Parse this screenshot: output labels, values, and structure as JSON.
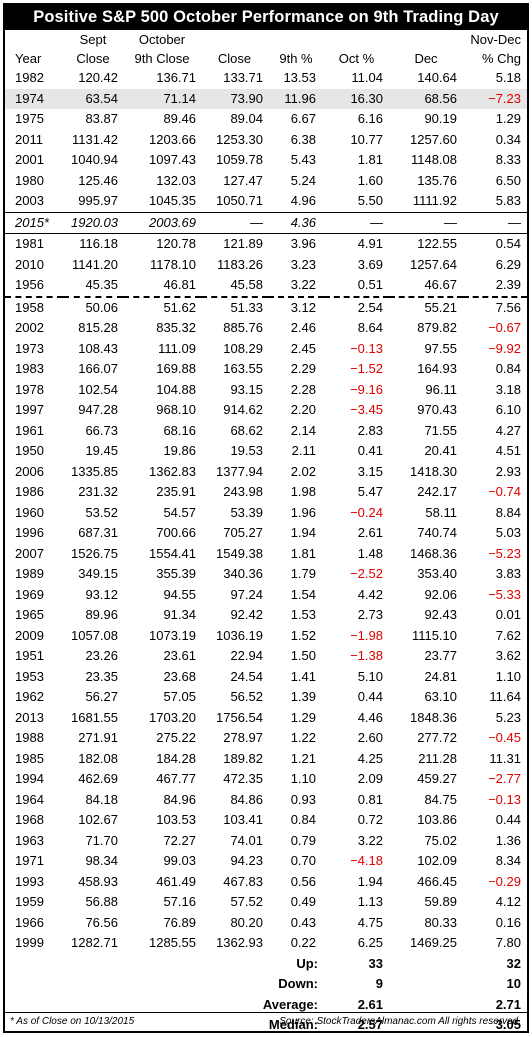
{
  "title": "Positive S&P 500 October Performance on 9th Trading Day",
  "header": {
    "row1": [
      "",
      "Sept",
      "October",
      "",
      "",
      "",
      "",
      "Nov-Dec"
    ],
    "row2": [
      "Year",
      "Close",
      "9th Close",
      "Close",
      "9th %",
      "Oct %",
      "Dec",
      "% Chg"
    ]
  },
  "group1": [
    [
      "1982",
      "120.42",
      "136.71",
      "133.71",
      "13.53",
      "11.04",
      "140.64",
      "5.18"
    ],
    [
      "1974",
      "63.54",
      "71.14",
      "73.90",
      "11.96",
      "16.30",
      "68.56",
      "−7.23"
    ],
    [
      "1975",
      "83.87",
      "89.46",
      "89.04",
      "6.67",
      "6.16",
      "90.19",
      "1.29"
    ],
    [
      "2011",
      "1131.42",
      "1203.66",
      "1253.30",
      "6.38",
      "10.77",
      "1257.60",
      "0.34"
    ],
    [
      "2001",
      "1040.94",
      "1097.43",
      "1059.78",
      "5.43",
      "1.81",
      "1148.08",
      "8.33"
    ],
    [
      "1980",
      "125.46",
      "132.03",
      "127.47",
      "5.24",
      "1.60",
      "135.76",
      "6.50"
    ],
    [
      "2003",
      "995.97",
      "1045.35",
      "1050.71",
      "4.96",
      "5.50",
      "1111.92",
      "5.83"
    ]
  ],
  "current": [
    "2015*",
    "1920.03",
    "2003.69",
    "—",
    "4.36",
    "—",
    "—",
    "—"
  ],
  "group2": [
    [
      "1981",
      "116.18",
      "120.78",
      "121.89",
      "3.96",
      "4.91",
      "122.55",
      "0.54"
    ],
    [
      "2010",
      "1141.20",
      "1178.10",
      "1183.26",
      "3.23",
      "3.69",
      "1257.64",
      "6.29"
    ],
    [
      "1956",
      "45.35",
      "46.81",
      "45.58",
      "3.22",
      "0.51",
      "46.67",
      "2.39"
    ]
  ],
  "group3": [
    [
      "1958",
      "50.06",
      "51.62",
      "51.33",
      "3.12",
      "2.54",
      "55.21",
      "7.56"
    ],
    [
      "2002",
      "815.28",
      "835.32",
      "885.76",
      "2.46",
      "8.64",
      "879.82",
      "−0.67"
    ],
    [
      "1973",
      "108.43",
      "111.09",
      "108.29",
      "2.45",
      "−0.13",
      "97.55",
      "−9.92"
    ],
    [
      "1983",
      "166.07",
      "169.88",
      "163.55",
      "2.29",
      "−1.52",
      "164.93",
      "0.84"
    ],
    [
      "1978",
      "102.54",
      "104.88",
      "93.15",
      "2.28",
      "−9.16",
      "96.11",
      "3.18"
    ],
    [
      "1997",
      "947.28",
      "968.10",
      "914.62",
      "2.20",
      "−3.45",
      "970.43",
      "6.10"
    ],
    [
      "1961",
      "66.73",
      "68.16",
      "68.62",
      "2.14",
      "2.83",
      "71.55",
      "4.27"
    ],
    [
      "1950",
      "19.45",
      "19.86",
      "19.53",
      "2.11",
      "0.41",
      "20.41",
      "4.51"
    ],
    [
      "2006",
      "1335.85",
      "1362.83",
      "1377.94",
      "2.02",
      "3.15",
      "1418.30",
      "2.93"
    ],
    [
      "1986",
      "231.32",
      "235.91",
      "243.98",
      "1.98",
      "5.47",
      "242.17",
      "−0.74"
    ],
    [
      "1960",
      "53.52",
      "54.57",
      "53.39",
      "1.96",
      "−0.24",
      "58.11",
      "8.84"
    ],
    [
      "1996",
      "687.31",
      "700.66",
      "705.27",
      "1.94",
      "2.61",
      "740.74",
      "5.03"
    ],
    [
      "2007",
      "1526.75",
      "1554.41",
      "1549.38",
      "1.81",
      "1.48",
      "1468.36",
      "−5.23"
    ],
    [
      "1989",
      "349.15",
      "355.39",
      "340.36",
      "1.79",
      "−2.52",
      "353.40",
      "3.83"
    ],
    [
      "1969",
      "93.12",
      "94.55",
      "97.24",
      "1.54",
      "4.42",
      "92.06",
      "−5.33"
    ],
    [
      "1965",
      "89.96",
      "91.34",
      "92.42",
      "1.53",
      "2.73",
      "92.43",
      "0.01"
    ],
    [
      "2009",
      "1057.08",
      "1073.19",
      "1036.19",
      "1.52",
      "−1.98",
      "1115.10",
      "7.62"
    ],
    [
      "1951",
      "23.26",
      "23.61",
      "22.94",
      "1.50",
      "−1.38",
      "23.77",
      "3.62"
    ],
    [
      "1953",
      "23.35",
      "23.68",
      "24.54",
      "1.41",
      "5.10",
      "24.81",
      "1.10"
    ],
    [
      "1962",
      "56.27",
      "57.05",
      "56.52",
      "1.39",
      "0.44",
      "63.10",
      "11.64"
    ],
    [
      "2013",
      "1681.55",
      "1703.20",
      "1756.54",
      "1.29",
      "4.46",
      "1848.36",
      "5.23"
    ],
    [
      "1988",
      "271.91",
      "275.22",
      "278.97",
      "1.22",
      "2.60",
      "277.72",
      "−0.45"
    ],
    [
      "1985",
      "182.08",
      "184.28",
      "189.82",
      "1.21",
      "4.25",
      "211.28",
      "11.31"
    ],
    [
      "1994",
      "462.69",
      "467.77",
      "472.35",
      "1.10",
      "2.09",
      "459.27",
      "−2.77"
    ],
    [
      "1964",
      "84.18",
      "84.96",
      "84.86",
      "0.93",
      "0.81",
      "84.75",
      "−0.13"
    ],
    [
      "1968",
      "102.67",
      "103.53",
      "103.41",
      "0.84",
      "0.72",
      "103.86",
      "0.44"
    ],
    [
      "1963",
      "71.70",
      "72.27",
      "74.01",
      "0.79",
      "3.22",
      "75.02",
      "1.36"
    ],
    [
      "1971",
      "98.34",
      "99.03",
      "94.23",
      "0.70",
      "−4.18",
      "102.09",
      "8.34"
    ],
    [
      "1993",
      "458.93",
      "461.49",
      "467.83",
      "0.56",
      "1.94",
      "466.45",
      "−0.29"
    ],
    [
      "1959",
      "56.88",
      "57.16",
      "57.52",
      "0.49",
      "1.13",
      "59.89",
      "4.12"
    ],
    [
      "1966",
      "76.56",
      "76.89",
      "80.20",
      "0.43",
      "4.75",
      "80.33",
      "0.16"
    ],
    [
      "1999",
      "1282.71",
      "1285.55",
      "1362.93",
      "0.22",
      "6.25",
      "1469.25",
      "7.80"
    ]
  ],
  "summary": [
    {
      "label": "Up:",
      "oct": "33",
      "nov_dec": "32"
    },
    {
      "label": "Down:",
      "oct": "9",
      "nov_dec": "10"
    },
    {
      "label": "Average:",
      "oct": "2.61",
      "nov_dec": "2.71"
    },
    {
      "label": "Median:",
      "oct": "2.57",
      "nov_dec": "3.05"
    }
  ],
  "footnote": "* As of Close on 10/13/2015",
  "source": "Source: StockTradersAlmanac.com All rights reserved.",
  "colors": {
    "negative": "#e00000",
    "shade": "#e6e6e6",
    "title_bg": "#000000"
  }
}
